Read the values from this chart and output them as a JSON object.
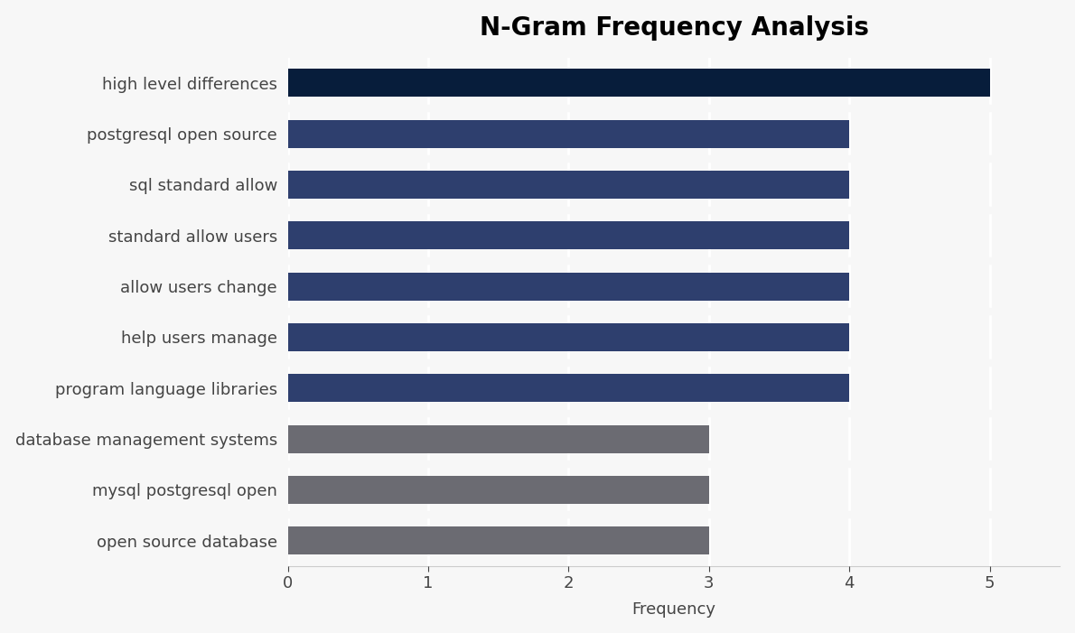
{
  "title": "N-Gram Frequency Analysis",
  "xlabel": "Frequency",
  "categories": [
    "open source database",
    "mysql postgresql open",
    "database management systems",
    "program language libraries",
    "help users manage",
    "allow users change",
    "standard allow users",
    "sql standard allow",
    "postgresql open source",
    "high level differences"
  ],
  "values": [
    3,
    3,
    3,
    4,
    4,
    4,
    4,
    4,
    4,
    5
  ],
  "bar_colors": [
    "#6b6b72",
    "#6b6b72",
    "#6b6b72",
    "#2e3f6e",
    "#2e3f6e",
    "#2e3f6e",
    "#2e3f6e",
    "#2e3f6e",
    "#2e3f6e",
    "#071d3b"
  ],
  "background_color": "#f7f7f7",
  "xlim": [
    0,
    5.5
  ],
  "xticks": [
    0,
    1,
    2,
    3,
    4,
    5
  ],
  "title_fontsize": 20,
  "label_fontsize": 13,
  "tick_fontsize": 13,
  "bar_height": 0.55,
  "text_color": "#444444"
}
